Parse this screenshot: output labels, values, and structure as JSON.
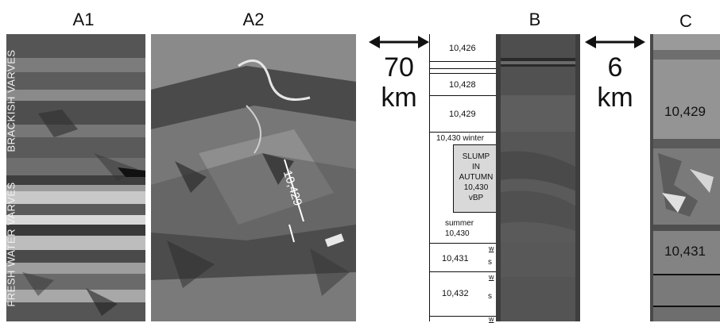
{
  "panels": {
    "a1": "A1",
    "a2": "A2",
    "b": "B",
    "c": "C"
  },
  "a1_annotations": {
    "brackish": "BRACKISH VARVES",
    "freshwater": "FRESH WATER VARVES"
  },
  "a2_annotation": "10,429",
  "distance_70": {
    "value": "70",
    "unit": "km"
  },
  "distance_6": {
    "value": "6",
    "unit": "km"
  },
  "log_b": {
    "v10426": "10,426",
    "v10428": "10,428",
    "v10429": "10,429",
    "v10430_winter": "10,430 winter",
    "slump": [
      "SLUMP",
      "IN",
      "AUTUMN",
      "10,430",
      "vBP"
    ],
    "summer": "summer",
    "summer_year": "10,430",
    "v10431": "10,431",
    "v10432": "10,432",
    "w": "w",
    "s": "s"
  },
  "c_labels": {
    "top": "10,429",
    "bottom": "10,431"
  },
  "colors": {
    "photo_dark": "#3a3a3a",
    "photo_light": "#9a9a9a",
    "background": "#ffffff"
  }
}
